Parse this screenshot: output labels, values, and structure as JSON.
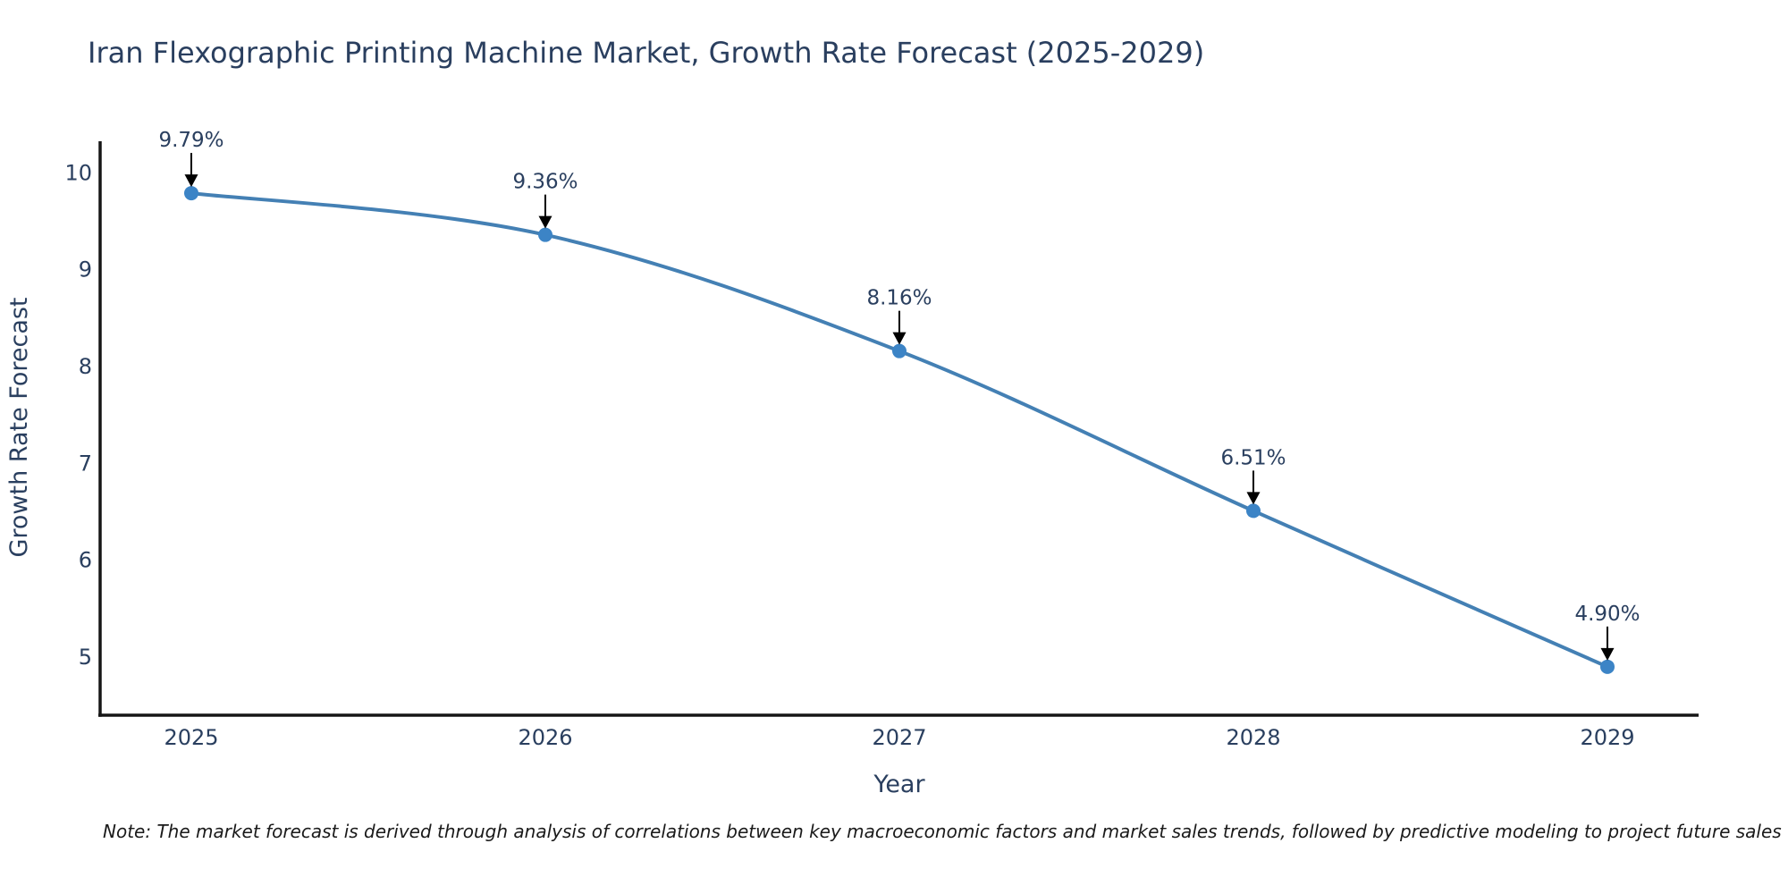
{
  "page": {
    "background_color": "#ffffff"
  },
  "note": {
    "text": "Note: The market forecast is derived through analysis of correlations between key macroeconomic factors and market sales trends, followed by predictive modeling to project future sales"
  },
  "chart_data": {
    "type": "line",
    "title": "Iran Flexographic Printing Machine Market, Growth Rate Forecast (2025-2029)",
    "xlabel": "Year",
    "ylabel": "Growth Rate Forecast",
    "categories": [
      "2025",
      "2026",
      "2027",
      "2028",
      "2029"
    ],
    "series": [
      {
        "name": "Growth Rate Forecast",
        "values": [
          9.79,
          9.36,
          8.16,
          6.51,
          4.9
        ],
        "point_labels": [
          "9.79%",
          "9.36%",
          "8.16%",
          "6.51%",
          "4.90%"
        ]
      }
    ],
    "y_ticks": [
      5,
      6,
      7,
      8,
      9,
      10
    ],
    "ylim": [
      4.4,
      10.4
    ],
    "line_shape": "spline",
    "marker": "circle",
    "grid": false,
    "legend_position": "none",
    "annotation_arrows": "down",
    "colors": {
      "line": "#4480b4",
      "marker": "#3c84c6",
      "axis": "#161616",
      "text": "#2a3f5f",
      "annotation_arrow": "#000000"
    }
  }
}
